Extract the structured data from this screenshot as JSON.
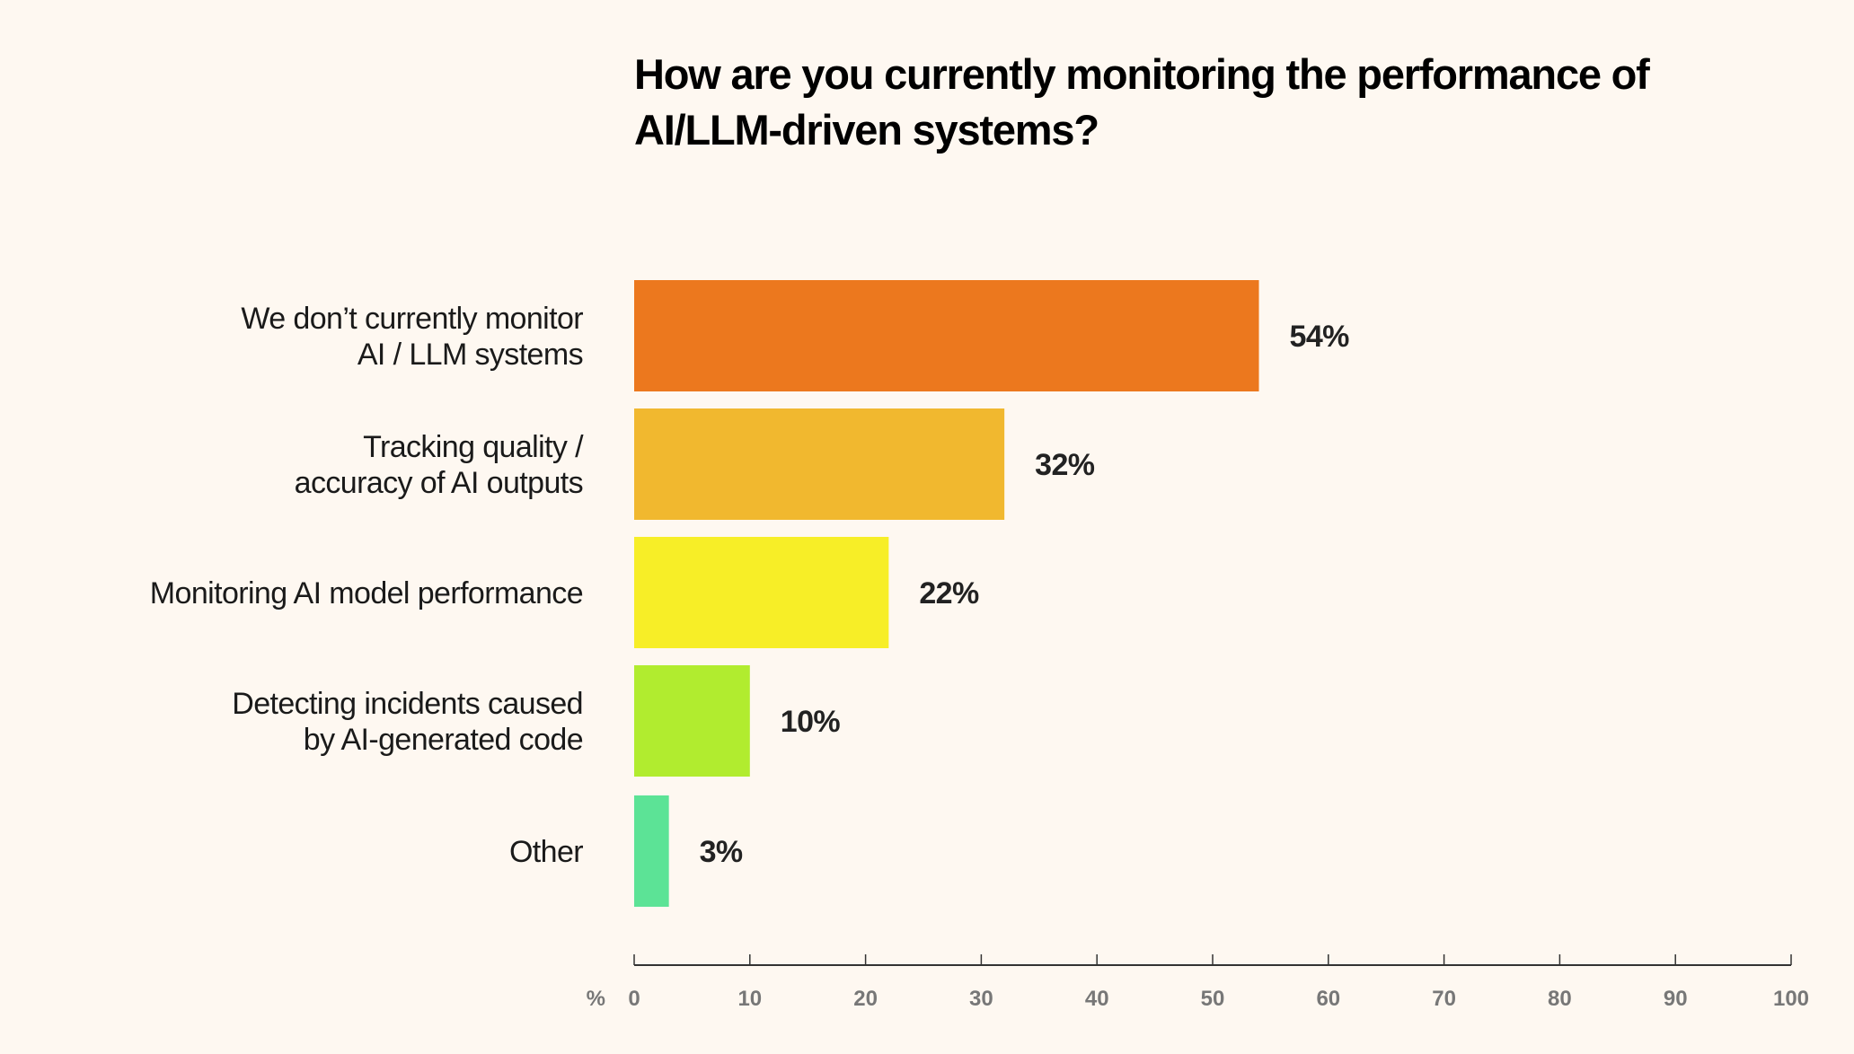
{
  "chart_data": {
    "type": "bar",
    "orientation": "horizontal",
    "title": "How are you currently monitoring the performance of AI/LLM-driven systems?",
    "categories": [
      [
        "We don’t currently monitor",
        "AI / LLM systems"
      ],
      [
        "Tracking quality /",
        "accuracy of AI outputs"
      ],
      [
        "Monitoring AI model performance"
      ],
      [
        "Detecting incidents caused",
        "by AI-generated code"
      ],
      [
        "Other"
      ]
    ],
    "values": [
      54,
      32,
      22,
      10,
      3
    ],
    "value_labels": [
      "54%",
      "32%",
      "22%",
      "10%",
      "3%"
    ],
    "colors": [
      "#ec781e",
      "#f1b82f",
      "#f7ee27",
      "#b1ec2f",
      "#5ce396"
    ],
    "xlabel": "%",
    "xlim": [
      0,
      100
    ],
    "xticks": [
      0,
      10,
      20,
      30,
      40,
      50,
      60,
      70,
      80,
      90,
      100
    ],
    "grid": false,
    "legend": "none"
  },
  "colors": {
    "background": "#fef8f1",
    "axis": "#333333",
    "tick_label": "#777777"
  }
}
